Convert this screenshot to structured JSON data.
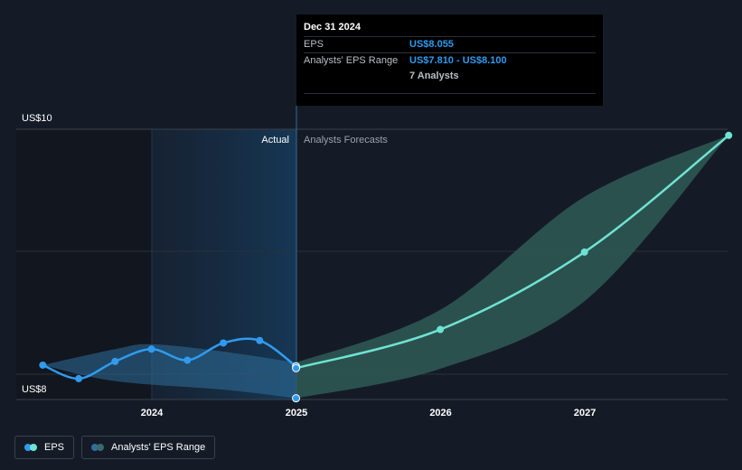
{
  "chart_data": {
    "type": "line",
    "y_axis": {
      "min_label": "US$8",
      "max_label": "US$10",
      "ylim": [
        7.8,
        10.0
      ]
    },
    "x_ticks": [
      "2024",
      "2025",
      "2026",
      "2027"
    ],
    "region_labels": {
      "actual": "Actual",
      "forecast": "Analysts Forecasts"
    },
    "eps_actual": [
      {
        "x": "2023-03-31",
        "y": 8.08
      },
      {
        "x": "2023-06-30",
        "y": 7.97
      },
      {
        "x": "2023-09-30",
        "y": 8.11
      },
      {
        "x": "2023-12-31",
        "y": 8.21
      },
      {
        "x": "2024-03-31",
        "y": 8.12
      },
      {
        "x": "2024-06-30",
        "y": 8.26
      },
      {
        "x": "2024-09-30",
        "y": 8.28
      },
      {
        "x": "2024-12-31",
        "y": 8.07
      }
    ],
    "eps_forecast": [
      {
        "x": "2024-12-31",
        "y": 8.055
      },
      {
        "x": "2025-12-31",
        "y": 8.37
      },
      {
        "x": "2026-12-31",
        "y": 9.0
      },
      {
        "x": "2027-12-31",
        "y": 9.95
      }
    ],
    "range_forecast": [
      {
        "x": "2024-12-31",
        "low": 7.81,
        "high": 8.1
      },
      {
        "x": "2025-12-31",
        "low": 8.05,
        "high": 8.53
      },
      {
        "x": "2026-12-31",
        "low": 8.6,
        "high": 9.45
      },
      {
        "x": "2027-12-31",
        "low": 9.95,
        "high": 9.95
      }
    ],
    "range_actual_upper": [
      {
        "x": "2023-03-31",
        "y": 8.08
      },
      {
        "x": "2023-09-30",
        "y": 8.21
      },
      {
        "x": "2023-12-31",
        "y": 8.25
      },
      {
        "x": "2024-06-30",
        "y": 8.19
      },
      {
        "x": "2024-12-31",
        "y": 8.1
      }
    ],
    "range_actual_lower": [
      {
        "x": "2023-03-31",
        "y": 8.08
      },
      {
        "x": "2023-09-30",
        "y": 7.95
      },
      {
        "x": "2024-06-30",
        "y": 7.88
      },
      {
        "x": "2024-12-31",
        "y": 7.81
      }
    ],
    "colors": {
      "eps": "#2f9bf0",
      "forecast": "#6fe3d3",
      "range_fill": "#2f5a57",
      "range_dot": "#3b6a6a",
      "actual_region": "#1b3f5c"
    }
  },
  "tooltip": {
    "date": "Dec 31 2024",
    "rows": [
      {
        "key": "EPS",
        "value": "US$8.055"
      },
      {
        "key": "Analysts' EPS Range",
        "value": "US$7.810 - US$8.100"
      }
    ],
    "analysts": "7 Analysts"
  },
  "legend": [
    {
      "label": "EPS"
    },
    {
      "label": "Analysts' EPS Range"
    }
  ]
}
